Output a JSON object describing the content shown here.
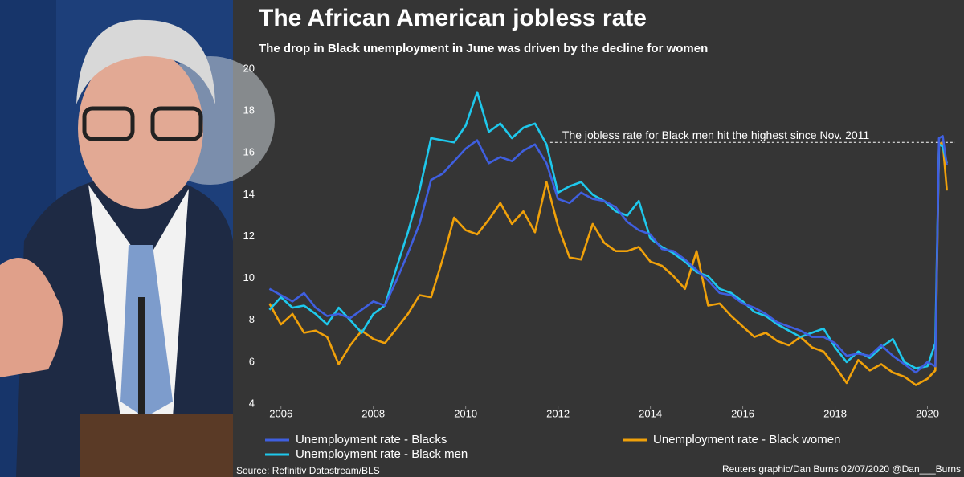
{
  "chart_data": {
    "type": "line",
    "title": "The African American jobless rate",
    "subtitle": "The drop in Black unemployment in June was driven by the decline for women",
    "source": "Source: Refinitiv Datastream/BLS",
    "credit": "Reuters graphic/Dan Burns 02/07/2020 @Dan___Burns",
    "x": [
      2005.75,
      2006,
      2006.25,
      2006.5,
      2006.75,
      2007,
      2007.25,
      2007.5,
      2007.75,
      2008,
      2008.25,
      2008.5,
      2008.75,
      2009,
      2009.25,
      2009.5,
      2009.75,
      2010,
      2010.25,
      2010.5,
      2010.75,
      2011,
      2011.25,
      2011.5,
      2011.75,
      2012,
      2012.25,
      2012.5,
      2012.75,
      2013,
      2013.25,
      2013.5,
      2013.75,
      2014,
      2014.25,
      2014.5,
      2014.75,
      2015,
      2015.25,
      2015.5,
      2015.75,
      2016,
      2016.25,
      2016.5,
      2016.75,
      2017,
      2017.25,
      2017.5,
      2017.75,
      2018,
      2018.25,
      2018.5,
      2018.75,
      2019,
      2019.25,
      2019.5,
      2019.75,
      2020,
      2020.17,
      2020.25,
      2020.33,
      2020.42
    ],
    "series": [
      {
        "name": "Unemployment rate - Blacks",
        "color": "#3f5fe0",
        "values": [
          9.5,
          9.2,
          8.9,
          9.3,
          8.6,
          8.2,
          8.3,
          8.1,
          8.5,
          8.9,
          8.7,
          9.9,
          11.2,
          12.6,
          14.7,
          15.0,
          15.6,
          16.2,
          16.6,
          15.5,
          15.8,
          15.6,
          16.1,
          16.4,
          15.5,
          13.8,
          13.6,
          14.1,
          13.8,
          13.7,
          13.4,
          12.7,
          12.3,
          12.1,
          11.4,
          11.3,
          10.9,
          10.4,
          9.9,
          9.3,
          9.2,
          8.8,
          8.6,
          8.3,
          7.9,
          7.7,
          7.5,
          7.2,
          7.2,
          6.9,
          6.3,
          6.4,
          6.3,
          6.8,
          6.3,
          5.9,
          5.5,
          6.0,
          5.8,
          16.7,
          16.8,
          15.4
        ]
      },
      {
        "name": "Unemployment rate - Black men",
        "color": "#1ec8ec",
        "values": [
          8.5,
          9.1,
          8.6,
          8.7,
          8.3,
          7.8,
          8.6,
          8.0,
          7.4,
          8.3,
          8.7,
          10.5,
          12.2,
          14.2,
          16.7,
          16.6,
          16.5,
          17.3,
          18.9,
          17.0,
          17.4,
          16.7,
          17.2,
          17.4,
          16.4,
          14.1,
          14.4,
          14.6,
          14.0,
          13.7,
          13.2,
          13.0,
          13.7,
          11.9,
          11.5,
          11.2,
          10.8,
          10.3,
          10.1,
          9.5,
          9.3,
          8.9,
          8.4,
          8.2,
          7.8,
          7.5,
          7.2,
          7.4,
          7.6,
          6.7,
          6.0,
          6.5,
          6.2,
          6.7,
          7.1,
          6.0,
          5.7,
          5.8,
          6.9,
          16.4,
          16.3,
          15.5
        ]
      },
      {
        "name": "Unemployment rate - Black women",
        "color": "#f0a10a",
        "values": [
          8.8,
          7.8,
          8.3,
          7.4,
          7.5,
          7.2,
          5.9,
          6.8,
          7.5,
          7.1,
          6.9,
          7.6,
          8.3,
          9.2,
          9.1,
          10.9,
          12.9,
          12.3,
          12.1,
          12.8,
          13.6,
          12.6,
          13.2,
          12.2,
          14.6,
          12.5,
          11.0,
          10.9,
          12.6,
          11.7,
          11.3,
          11.3,
          11.5,
          10.8,
          10.6,
          10.1,
          9.5,
          11.3,
          8.7,
          8.8,
          8.2,
          7.7,
          7.2,
          7.4,
          7.0,
          6.8,
          7.2,
          6.7,
          6.5,
          5.8,
          5.0,
          6.1,
          5.6,
          5.9,
          5.5,
          5.3,
          4.9,
          5.2,
          5.6,
          16.4,
          16.5,
          14.2
        ]
      }
    ],
    "xlim": [
      2005.5,
      2020.6
    ],
    "xticks": [
      2006,
      2008,
      2010,
      2012,
      2014,
      2016,
      2018,
      2020
    ],
    "ylim": [
      4,
      20
    ],
    "yticks": [
      4,
      6,
      8,
      10,
      12,
      14,
      16,
      18,
      20
    ],
    "grid": false,
    "annotation": {
      "text": "The jobless rate for Black men hit the highest since Nov. 2011",
      "x": 2011.83,
      "y": 16.5
    }
  }
}
